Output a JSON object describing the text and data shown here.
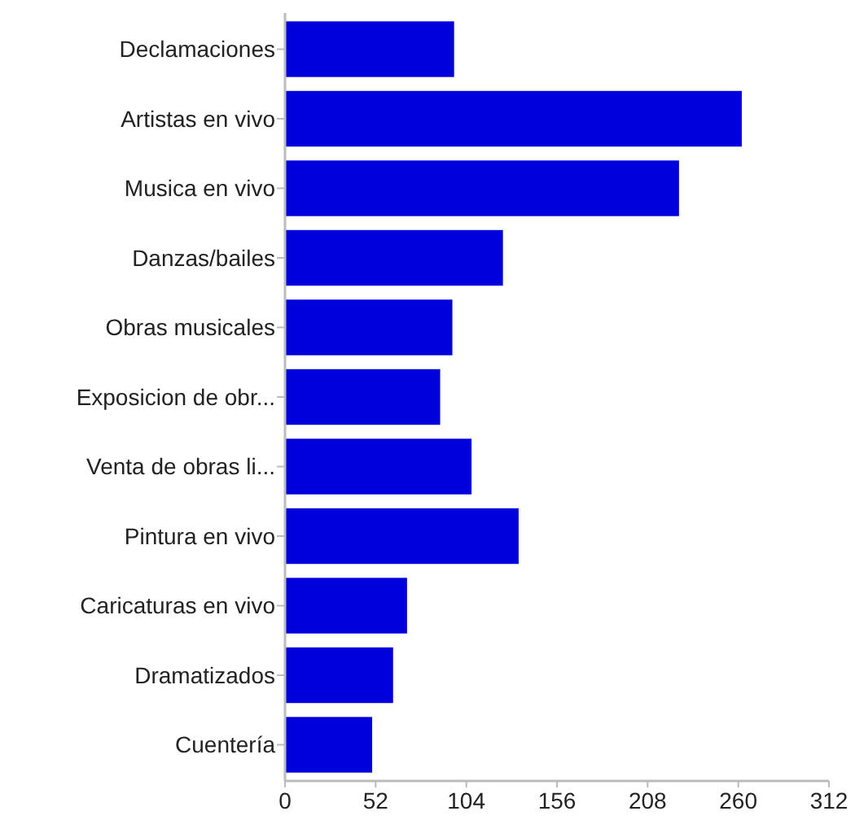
{
  "chart_data": {
    "type": "bar",
    "orientation": "horizontal",
    "categories": [
      "Declamaciones",
      "Artistas en vivo",
      "Musica en vivo",
      "Danzas/bailes",
      "Obras musicales",
      "Exposicion de obr...",
      "Venta de obras li...",
      "Pintura en vivo",
      "Caricaturas en vivo",
      "Dramatizados",
      "Cuentería"
    ],
    "values": [
      97,
      262,
      226,
      125,
      96,
      89,
      107,
      134,
      70,
      62,
      50
    ],
    "color": "#0000dd",
    "xlim": [
      0,
      312
    ],
    "xticks": [
      0,
      52,
      104,
      156,
      208,
      260,
      312
    ],
    "grid": false
  }
}
